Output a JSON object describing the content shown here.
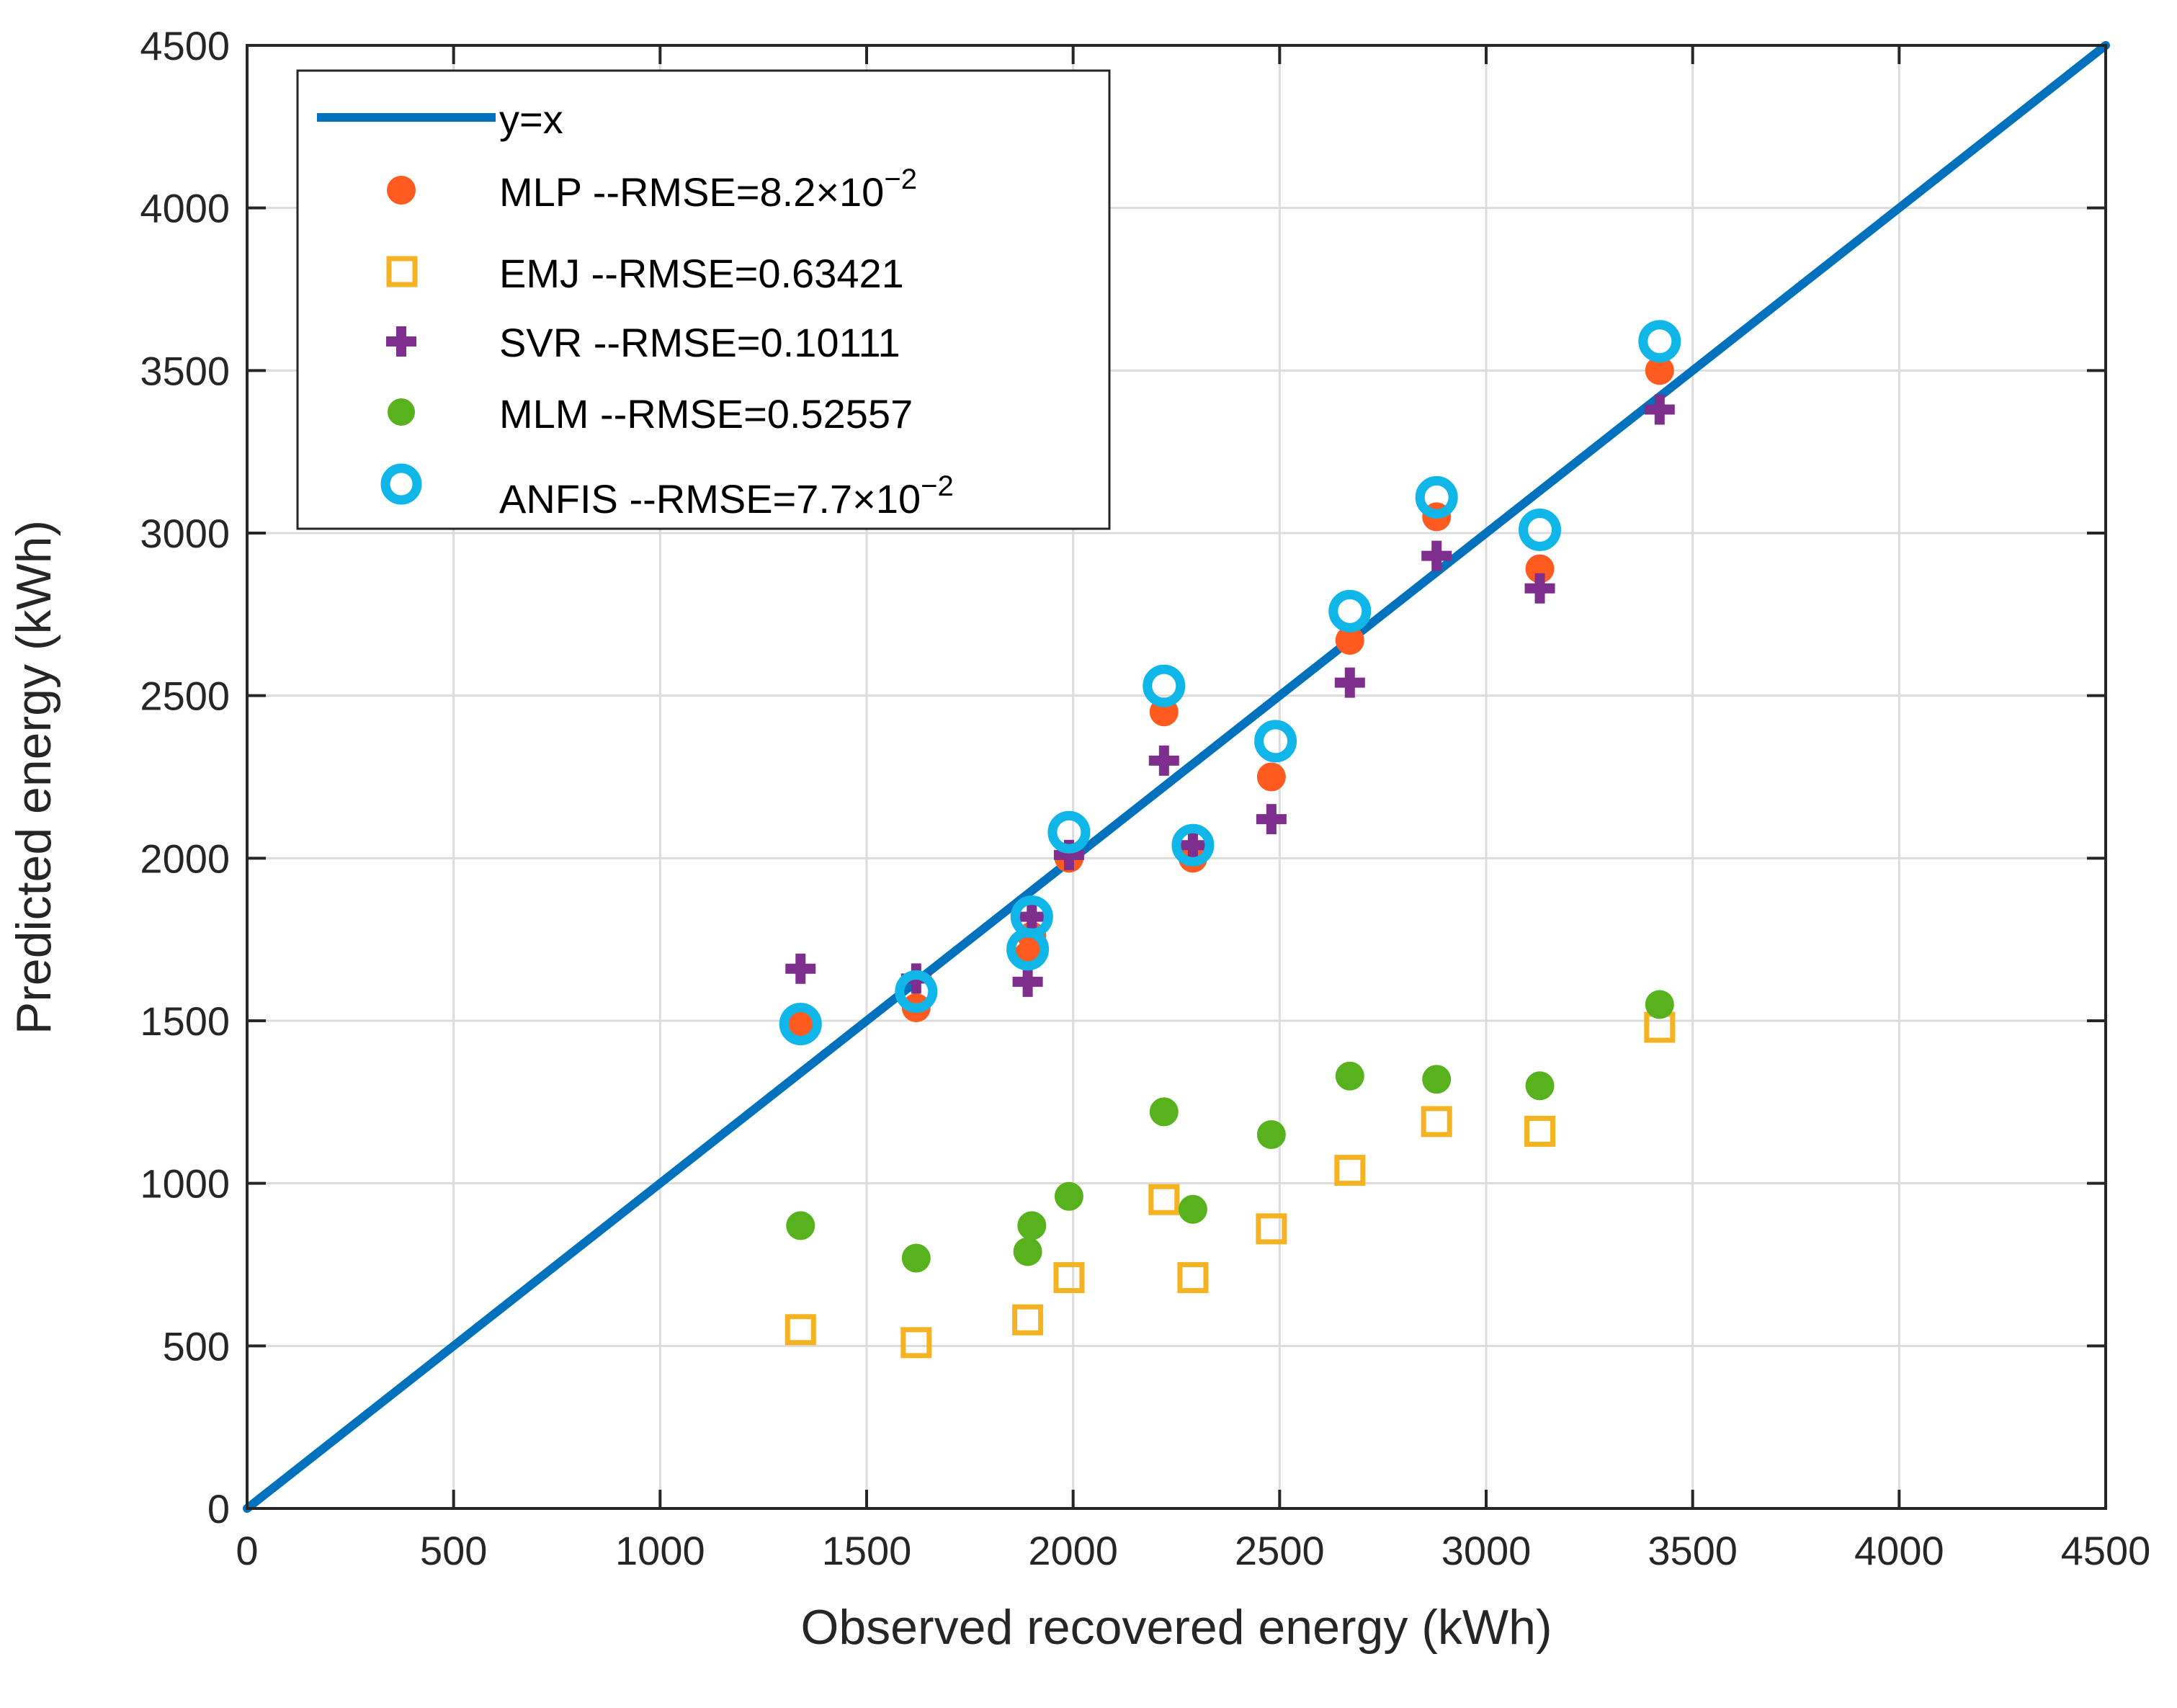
{
  "chart_data": {
    "type": "scatter",
    "title": "",
    "xlabel": "Observed recovered energy (kWh)",
    "ylabel": "Predicted energy (kWh)",
    "xlim": [
      0,
      4500
    ],
    "ylim": [
      0,
      4500
    ],
    "xticks": [
      0,
      500,
      1000,
      1500,
      2000,
      2500,
      3000,
      3500,
      4000,
      4500
    ],
    "yticks": [
      0,
      500,
      1000,
      1500,
      2000,
      2500,
      3000,
      3500,
      4000,
      4500
    ],
    "grid": true,
    "legend_position": "top-left",
    "reference_line": {
      "name": "y=x",
      "label": "y=x",
      "color": "#0072bd",
      "x": [
        0,
        4500
      ],
      "y": [
        0,
        4500
      ]
    },
    "series": [
      {
        "name": "MLP",
        "label_main": "MLP --RMSE=8.2×10",
        "label_exp": "−2",
        "marker": "filled-circle",
        "color": "#ff5a1f",
        "x": [
          1340,
          1620,
          1890,
          1900,
          1990,
          2220,
          2290,
          2480,
          2670,
          2880,
          3130,
          3420
        ],
        "y": [
          1490,
          1540,
          1700,
          1760,
          2000,
          2450,
          2000,
          2250,
          2670,
          3050,
          2890,
          3500
        ]
      },
      {
        "name": "EMJ",
        "label_main": "EMJ --RMSE=0.63421",
        "marker": "square",
        "color": "#f5b222",
        "x": [
          1340,
          1620,
          1890,
          1990,
          2220,
          2290,
          2480,
          2670,
          2880,
          3130,
          3420
        ],
        "y": [
          550,
          510,
          580,
          710,
          950,
          710,
          860,
          1040,
          1190,
          1160,
          1480
        ]
      },
      {
        "name": "SVR",
        "label_main": "SVR --RMSE=0.10111",
        "marker": "plus",
        "color": "#7e2f8e",
        "x": [
          1340,
          1620,
          1890,
          1900,
          1990,
          2220,
          2290,
          2480,
          2670,
          2880,
          3130,
          3420
        ],
        "y": [
          1660,
          1630,
          1620,
          1820,
          2010,
          2300,
          2040,
          2120,
          2540,
          2930,
          2830,
          3380
        ]
      },
      {
        "name": "MLM",
        "label_main": "MLM --RMSE=0.52557",
        "marker": "filled-circle",
        "color": "#58b21e",
        "x": [
          1340,
          1620,
          1890,
          1900,
          1990,
          2220,
          2290,
          2480,
          2670,
          2880,
          3130,
          3420
        ],
        "y": [
          870,
          770,
          790,
          870,
          960,
          1220,
          920,
          1150,
          1330,
          1320,
          1300,
          1550
        ]
      },
      {
        "name": "ANFIS",
        "label_main": "ANFIS --RMSE=7.7×10",
        "label_exp": "−2",
        "marker": "ring",
        "color": "#10b6e8",
        "x": [
          1340,
          1620,
          1890,
          1900,
          1990,
          2220,
          2290,
          2490,
          2670,
          2880,
          3130,
          3420
        ],
        "y": [
          1490,
          1590,
          1720,
          1820,
          2080,
          2530,
          2040,
          2360,
          2760,
          3110,
          3010,
          3590
        ]
      }
    ]
  }
}
